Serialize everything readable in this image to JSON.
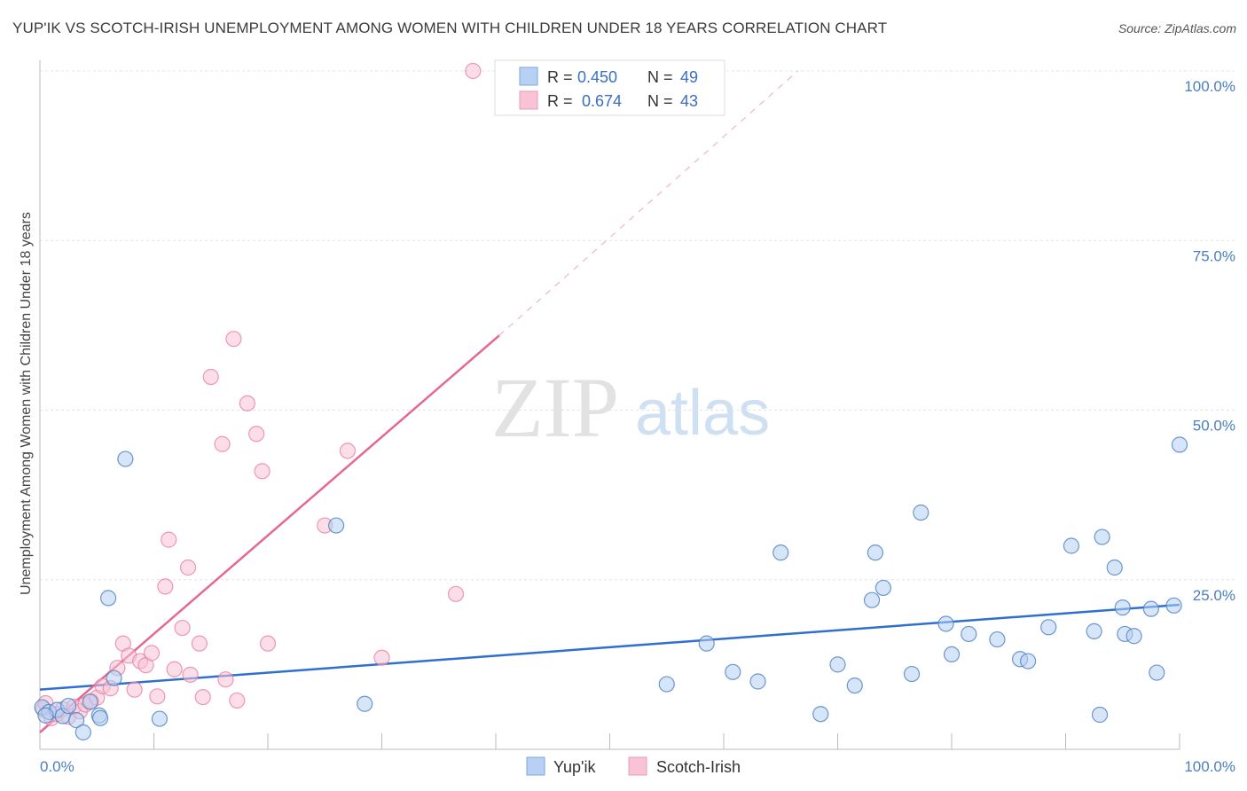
{
  "title": "YUP'IK VS SCOTCH-IRISH UNEMPLOYMENT AMONG WOMEN WITH CHILDREN UNDER 18 YEARS CORRELATION CHART",
  "source": "Source: ZipAtlas.com",
  "watermark": {
    "zip": "ZIP",
    "atlas": "atlas"
  },
  "colors": {
    "blue": "#4a7fc1",
    "pink": "#e8799e",
    "blue_fill": "#b7d0f3",
    "pink_fill": "#f8c3d4",
    "blue_line": "#2f6fd0",
    "pink_line": "#e6678f"
  },
  "legend": {
    "series": [
      {
        "name": "Yup'ik",
        "r_label": "R =",
        "r_value": "0.450",
        "n_label": "N =",
        "n_value": "49"
      },
      {
        "name": "Scotch-Irish",
        "r_label": "R =",
        "r_value": "0.674",
        "n_label": "N =",
        "n_value": "43"
      }
    ]
  },
  "chart_data": {
    "type": "scatter",
    "title": "YUP'IK VS SCOTCH-IRISH UNEMPLOYMENT AMONG WOMEN WITH CHILDREN UNDER 18 YEARS CORRELATION CHART",
    "xlabel": "",
    "ylabel": "Unemployment Among Women with Children Under 18 years",
    "xlim": [
      0,
      100
    ],
    "ylim": [
      0,
      102
    ],
    "x_tick_labels": [
      "0.0%",
      "100.0%"
    ],
    "y_tick_labels": [
      "25.0%",
      "50.0%",
      "75.0%",
      "100.0%"
    ],
    "y_ticks": [
      25,
      50,
      75,
      100
    ],
    "series": [
      {
        "name": "Yup'ik",
        "points": [
          [
            0.2,
            6.2
          ],
          [
            0.8,
            5.5
          ],
          [
            1.5,
            5.8
          ],
          [
            2.0,
            4.9
          ],
          [
            2.5,
            6.4
          ],
          [
            3.2,
            4.3
          ],
          [
            3.8,
            2.5
          ],
          [
            4.4,
            7.0
          ],
          [
            5.2,
            5.0
          ],
          [
            5.3,
            4.6
          ],
          [
            6.0,
            22.3
          ],
          [
            6.5,
            10.5
          ],
          [
            7.5,
            42.8
          ],
          [
            10.5,
            4.5
          ],
          [
            26.0,
            33.0
          ],
          [
            28.5,
            6.7
          ],
          [
            55.0,
            9.6
          ],
          [
            58.5,
            15.6
          ],
          [
            60.8,
            11.4
          ],
          [
            63.0,
            10.0
          ],
          [
            65.0,
            29.0
          ],
          [
            68.5,
            5.2
          ],
          [
            70.0,
            12.5
          ],
          [
            71.5,
            9.4
          ],
          [
            73.0,
            22.0
          ],
          [
            73.3,
            29.0
          ],
          [
            74.0,
            23.8
          ],
          [
            76.5,
            11.1
          ],
          [
            77.3,
            34.9
          ],
          [
            79.5,
            18.5
          ],
          [
            80.0,
            14.0
          ],
          [
            81.5,
            17.0
          ],
          [
            84.0,
            16.2
          ],
          [
            86.0,
            13.3
          ],
          [
            86.7,
            13.0
          ],
          [
            88.5,
            18.0
          ],
          [
            90.5,
            30.0
          ],
          [
            92.5,
            17.4
          ],
          [
            93.0,
            5.1
          ],
          [
            93.2,
            31.3
          ],
          [
            94.3,
            26.8
          ],
          [
            95.0,
            20.9
          ],
          [
            95.2,
            17.0
          ],
          [
            96.0,
            16.7
          ],
          [
            97.5,
            20.7
          ],
          [
            98.0,
            11.3
          ],
          [
            99.5,
            21.2
          ],
          [
            100.0,
            44.9
          ],
          [
            0.5,
            5.0
          ]
        ],
        "trend": {
          "x0": 0,
          "y0": 8.8,
          "x1": 100,
          "y1": 21.3
        }
      },
      {
        "name": "Scotch-Irish",
        "points": [
          [
            0.3,
            5.9
          ],
          [
            0.5,
            6.8
          ],
          [
            1.0,
            4.6
          ],
          [
            1.5,
            5.2
          ],
          [
            2.0,
            5.9
          ],
          [
            2.5,
            4.8
          ],
          [
            3.0,
            6.3
          ],
          [
            3.5,
            5.6
          ],
          [
            4.0,
            6.6
          ],
          [
            4.5,
            7.1
          ],
          [
            5.0,
            7.6
          ],
          [
            5.5,
            9.3
          ],
          [
            6.2,
            9.0
          ],
          [
            6.8,
            12.0
          ],
          [
            7.3,
            15.6
          ],
          [
            7.8,
            13.8
          ],
          [
            8.3,
            8.8
          ],
          [
            8.8,
            13.0
          ],
          [
            9.3,
            12.4
          ],
          [
            9.8,
            14.2
          ],
          [
            10.3,
            7.8
          ],
          [
            11.0,
            24.0
          ],
          [
            11.3,
            30.9
          ],
          [
            11.8,
            11.8
          ],
          [
            12.5,
            17.9
          ],
          [
            13.0,
            26.8
          ],
          [
            13.2,
            11.0
          ],
          [
            14.0,
            15.6
          ],
          [
            14.3,
            7.7
          ],
          [
            15.0,
            54.9
          ],
          [
            16.0,
            45.0
          ],
          [
            16.3,
            10.3
          ],
          [
            17.0,
            60.5
          ],
          [
            17.3,
            7.2
          ],
          [
            18.2,
            51.0
          ],
          [
            19.0,
            46.5
          ],
          [
            19.5,
            41.0
          ],
          [
            20.0,
            15.6
          ],
          [
            25.0,
            33.0
          ],
          [
            27.0,
            44.0
          ],
          [
            30.0,
            13.5
          ],
          [
            36.5,
            22.9
          ],
          [
            38.0,
            100.0
          ]
        ],
        "trend": {
          "x0": 0,
          "y0": 2.5,
          "x1": 40.3,
          "y1": 61.0
        },
        "trend_dashed": {
          "x0": 40.3,
          "y0": 61.0,
          "x1": 66.5,
          "y1": 100.0
        }
      }
    ]
  }
}
